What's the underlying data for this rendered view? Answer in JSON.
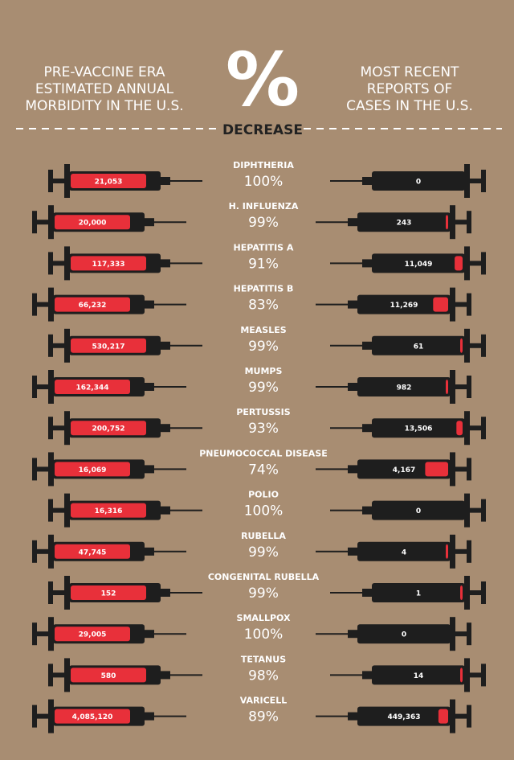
{
  "header": {
    "left": [
      "PRE-VACCINE ERA",
      "ESTIMATED ANNUAL",
      "MORBIDITY IN THE U.S."
    ],
    "symbol": "%",
    "center": "DECREASE",
    "right": [
      "MOST RECENT",
      "REPORTS OF",
      "CASES IN THE U.S."
    ]
  },
  "rows": [
    {
      "disease": "DIPHTHERIA",
      "before": "21,053",
      "decrease": "100%",
      "after": "0"
    },
    {
      "disease": "H. INFLUENZA",
      "before": "20,000",
      "decrease": "99%",
      "after": "243"
    },
    {
      "disease": "HEPATITIS A",
      "before": "117,333",
      "decrease": "91%",
      "after": "11,049"
    },
    {
      "disease": "HEPATITIS B",
      "before": "66,232",
      "decrease": "83%",
      "after": "11,269"
    },
    {
      "disease": "MEASLES",
      "before": "530,217",
      "decrease": "99%",
      "after": "61"
    },
    {
      "disease": "MUMPS",
      "before": "162,344",
      "decrease": "99%",
      "after": "982"
    },
    {
      "disease": "PERTUSSIS",
      "before": "200,752",
      "decrease": "93%",
      "after": "13,506"
    },
    {
      "disease": "PNEUMOCOCCAL DISEASE",
      "before": "16,069",
      "decrease": "74%",
      "after": "4,167"
    },
    {
      "disease": "POLIO",
      "before": "16,316",
      "decrease": "100%",
      "after": "0"
    },
    {
      "disease": "RUBELLA",
      "before": "47,745",
      "decrease": "99%",
      "after": "4"
    },
    {
      "disease": "CONGENITAL RUBELLA",
      "before": "152",
      "decrease": "99%",
      "after": "1"
    },
    {
      "disease": "SMALLPOX",
      "before": "29,005",
      "decrease": "100%",
      "after": "0"
    },
    {
      "disease": "TETANUS",
      "before": "580",
      "decrease": "98%",
      "after": "14"
    },
    {
      "disease": "VARICELL",
      "before": "4,085,120",
      "decrease": "89%",
      "after": "449,363"
    }
  ]
}
